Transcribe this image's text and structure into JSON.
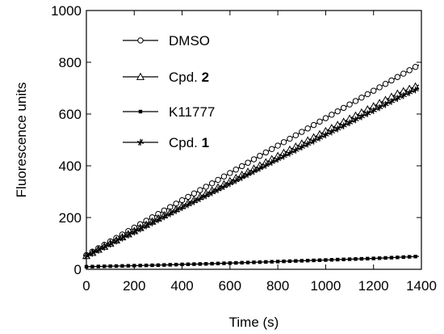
{
  "chart_data": {
    "type": "line",
    "xlabel": "Time (s)",
    "ylabel": "Fluorescence units",
    "xlim": [
      0,
      1400
    ],
    "ylim": [
      0,
      1000
    ],
    "xticks": [
      "0",
      "200",
      "400",
      "600",
      "800",
      "1000",
      "1200",
      "1400"
    ],
    "yticks": [
      "0",
      "200",
      "400",
      "600",
      "800",
      "1000"
    ],
    "legend_position": "top-left",
    "series": [
      {
        "name": "DMSO",
        "label_plain": "DMSO",
        "label_bold": "",
        "marker": "circle",
        "x": [
          0,
          100,
          200,
          300,
          400,
          500,
          600,
          700,
          800,
          900,
          1000,
          1100,
          1200,
          1300,
          1390
        ],
        "y": [
          55,
          108,
          161,
          214,
          267,
          319,
          372,
          425,
          478,
          531,
          584,
          637,
          690,
          743,
          790
        ]
      },
      {
        "name": "Cpd. 2",
        "label_plain": "Cpd. ",
        "label_bold": "2",
        "marker": "triangle",
        "x": [
          0,
          100,
          200,
          300,
          400,
          500,
          600,
          700,
          800,
          900,
          1000,
          1100,
          1200,
          1300,
          1390
        ],
        "y": [
          52,
          100,
          148,
          197,
          245,
          293,
          341,
          389,
          438,
          486,
          534,
          582,
          630,
          679,
          712
        ]
      },
      {
        "name": "K11777",
        "label_plain": "K11777",
        "label_bold": "",
        "marker": "square",
        "x": [
          0,
          100,
          200,
          300,
          400,
          500,
          600,
          700,
          800,
          900,
          1000,
          1100,
          1200,
          1300,
          1390
        ],
        "y": [
          10,
          12,
          14,
          16,
          19,
          21,
          24,
          27,
          30,
          33,
          36,
          39,
          42,
          46,
          50
        ]
      },
      {
        "name": "Cpd. 1",
        "label_plain": "Cpd. ",
        "label_bold": "1",
        "marker": "star",
        "x": [
          0,
          100,
          200,
          300,
          400,
          500,
          600,
          700,
          800,
          900,
          1000,
          1100,
          1200,
          1300,
          1390
        ],
        "y": [
          50,
          97,
          144,
          191,
          238,
          284,
          331,
          378,
          425,
          472,
          519,
          566,
          613,
          660,
          700
        ]
      }
    ]
  }
}
